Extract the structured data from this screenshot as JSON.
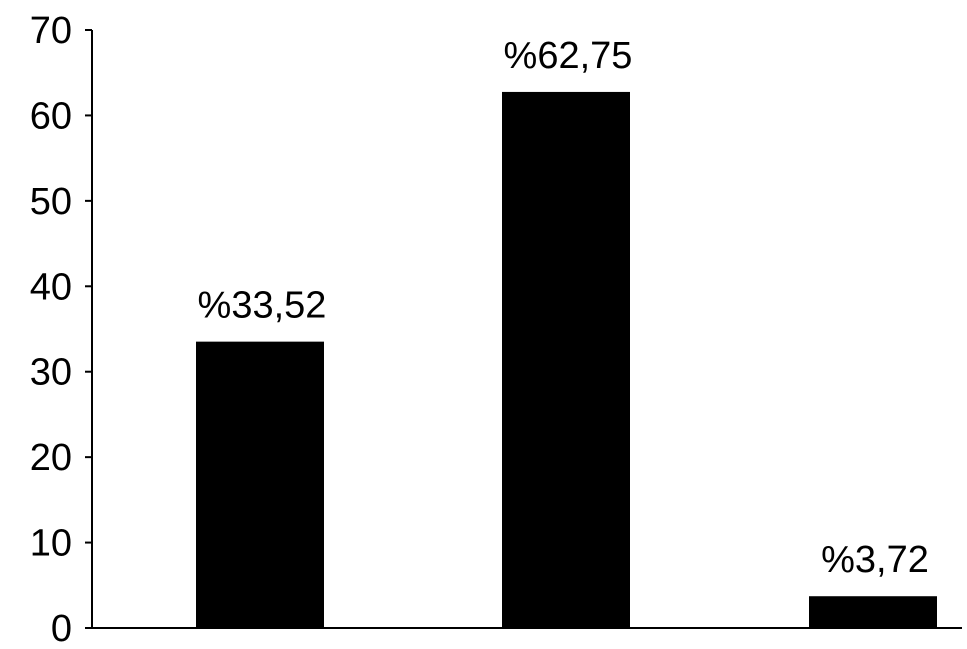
{
  "chart_data": {
    "type": "bar",
    "title": "",
    "xlabel": "",
    "ylabel": "",
    "categories": [
      "",
      "",
      ""
    ],
    "values": [
      33.52,
      62.75,
      3.72
    ],
    "data_labels": [
      "%33,52",
      "%62,75",
      "%3,72"
    ],
    "ylim": [
      0,
      70
    ],
    "yticks": [
      0,
      10,
      20,
      30,
      40,
      50,
      60,
      70
    ],
    "ytick_labels": [
      "0",
      "10",
      "20",
      "30",
      "40",
      "50",
      "60",
      "70"
    ],
    "grid": false,
    "legend": "none",
    "colors": {
      "bar": "#000000",
      "axis": "#000000",
      "background": "#ffffff"
    }
  }
}
